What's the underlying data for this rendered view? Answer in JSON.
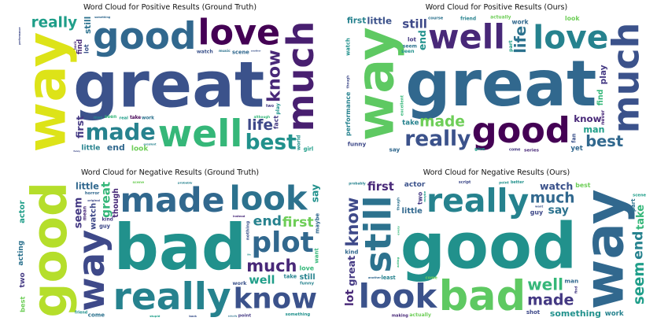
{
  "panels": [
    {
      "title": "Word Cloud for Positive Results (Ground Truth)",
      "words": [
        {
          "text": "great",
          "size": 1.0,
          "color": "#3b528b"
        },
        {
          "text": "good",
          "size": 0.95,
          "color": "#31688e"
        },
        {
          "text": "way",
          "size": 0.85,
          "color": "#dde318"
        },
        {
          "text": "well",
          "size": 0.8,
          "color": "#35b779"
        },
        {
          "text": "love",
          "size": 0.75,
          "color": "#440154"
        },
        {
          "text": "much",
          "size": 0.65,
          "color": "#481f70"
        },
        {
          "text": "made",
          "size": 0.55,
          "color": "#26828e"
        },
        {
          "text": "best",
          "size": 0.5,
          "color": "#21918c"
        },
        {
          "text": "know",
          "size": 0.5,
          "color": "#482878"
        },
        {
          "text": "life",
          "size": 0.48,
          "color": "#3e4989"
        },
        {
          "text": "really",
          "size": 0.48,
          "color": "#1f9e89"
        },
        {
          "text": "first",
          "size": 0.45,
          "color": "#443983"
        },
        {
          "text": "end",
          "size": 0.38,
          "color": "#31688e"
        },
        {
          "text": "look",
          "size": 0.3,
          "color": "#6ece58"
        },
        {
          "text": "still",
          "size": 0.3,
          "color": "#2c728e"
        },
        {
          "text": "little",
          "size": 0.3,
          "color": "#26828e"
        },
        {
          "text": "watch",
          "size": 0.28,
          "color": "#3b528b"
        },
        {
          "text": "play",
          "size": 0.28,
          "color": "#21918c"
        },
        {
          "text": "seen",
          "size": 0.26,
          "color": "#35b779"
        },
        {
          "text": "work",
          "size": 0.26,
          "color": "#2c728e"
        },
        {
          "text": "find",
          "size": 0.24,
          "color": "#482878"
        },
        {
          "text": "real",
          "size": 0.22,
          "color": "#1f9e89"
        },
        {
          "text": "scene",
          "size": 0.2,
          "color": "#31688e"
        },
        {
          "text": "lot",
          "size": 0.2,
          "color": "#3b528b"
        },
        {
          "text": "man",
          "size": 0.2,
          "color": "#26828e"
        },
        {
          "text": "take",
          "size": 0.16,
          "color": "#440154"
        },
        {
          "text": "fact",
          "size": 0.16,
          "color": "#443983"
        },
        {
          "text": "funny",
          "size": 0.14,
          "color": "#3e4989"
        },
        {
          "text": "music",
          "size": 0.14,
          "color": "#2c728e"
        },
        {
          "text": "world",
          "size": 0.14,
          "color": "#21918c"
        },
        {
          "text": "come",
          "size": 0.14,
          "color": "#26828e"
        },
        {
          "text": "something",
          "size": 0.12,
          "color": "#31688e"
        },
        {
          "text": "thought",
          "size": 0.12,
          "color": "#6ece58"
        },
        {
          "text": "another",
          "size": 0.12,
          "color": "#3b528b"
        },
        {
          "text": "girl",
          "size": 0.12,
          "color": "#1f9e89"
        },
        {
          "text": "back",
          "size": 0.12,
          "color": "#482878"
        },
        {
          "text": "although",
          "size": 0.12,
          "color": "#35b779"
        },
        {
          "text": "excellent",
          "size": 0.1,
          "color": "#26828e"
        },
        {
          "text": "performance",
          "size": 0.1,
          "color": "#3e4989"
        },
        {
          "text": "two",
          "size": 0.12,
          "color": "#443983"
        }
      ]
    },
    {
      "title": "Word Cloud for Positive Results (Ours)",
      "words": [
        {
          "text": "great",
          "size": 1.0,
          "color": "#31688e"
        },
        {
          "text": "good",
          "size": 0.9,
          "color": "#440154"
        },
        {
          "text": "way",
          "size": 0.8,
          "color": "#5ec962"
        },
        {
          "text": "well",
          "size": 0.72,
          "color": "#482878"
        },
        {
          "text": "love",
          "size": 0.68,
          "color": "#26828e"
        },
        {
          "text": "much",
          "size": 0.65,
          "color": "#3b528b"
        },
        {
          "text": "really",
          "size": 0.5,
          "color": "#3b528b"
        },
        {
          "text": "best",
          "size": 0.42,
          "color": "#31688e"
        },
        {
          "text": "life",
          "size": 0.42,
          "color": "#2c728e"
        },
        {
          "text": "made",
          "size": 0.4,
          "color": "#6ece58"
        },
        {
          "text": "still",
          "size": 0.38,
          "color": "#3e4989"
        },
        {
          "text": "end",
          "size": 0.36,
          "color": "#21918c"
        },
        {
          "text": "know",
          "size": 0.34,
          "color": "#482878"
        },
        {
          "text": "man",
          "size": 0.32,
          "color": "#1f9e89"
        },
        {
          "text": "play",
          "size": 0.3,
          "color": "#443983"
        },
        {
          "text": "first",
          "size": 0.3,
          "color": "#26828e"
        },
        {
          "text": "little",
          "size": 0.28,
          "color": "#3b528b"
        },
        {
          "text": "find",
          "size": 0.26,
          "color": "#35b779"
        },
        {
          "text": "work",
          "size": 0.24,
          "color": "#31688e"
        },
        {
          "text": "seem",
          "size": 0.22,
          "color": "#2c728e"
        },
        {
          "text": "watch",
          "size": 0.2,
          "color": "#21918c"
        },
        {
          "text": "look",
          "size": 0.2,
          "color": "#6ece58"
        },
        {
          "text": "take",
          "size": 0.18,
          "color": "#26828e"
        },
        {
          "text": "part",
          "size": 0.18,
          "color": "#1f9e89"
        },
        {
          "text": "funny",
          "size": 0.14,
          "color": "#3e4989"
        },
        {
          "text": "series",
          "size": 0.12,
          "color": "#482878"
        },
        {
          "text": "performance",
          "size": 0.12,
          "color": "#26828e"
        },
        {
          "text": "lot",
          "size": 0.14,
          "color": "#443983"
        },
        {
          "text": "yet",
          "size": 0.14,
          "color": "#31688e"
        },
        {
          "text": "fan",
          "size": 0.12,
          "color": "#3b528b"
        },
        {
          "text": "seen",
          "size": 0.14,
          "color": "#21918c"
        },
        {
          "text": "course",
          "size": 0.1,
          "color": "#2c728e"
        },
        {
          "text": "excellent",
          "size": 0.1,
          "color": "#35b779"
        },
        {
          "text": "friend",
          "size": 0.1,
          "color": "#26828e"
        },
        {
          "text": "give",
          "size": 0.12,
          "color": "#1f9e89"
        },
        {
          "text": "never",
          "size": 0.1,
          "color": "#482878"
        },
        {
          "text": "actually",
          "size": 0.1,
          "color": "#6ece58"
        },
        {
          "text": "come",
          "size": 0.12,
          "color": "#443983"
        },
        {
          "text": "though",
          "size": 0.12,
          "color": "#3e4989"
        },
        {
          "text": "say",
          "size": 0.14,
          "color": "#31688e"
        }
      ]
    },
    {
      "title": "Word Cloud for Negative Results (Ground Truth)",
      "words": [
        {
          "text": "bad",
          "size": 1.0,
          "color": "#21918c"
        },
        {
          "text": "really",
          "size": 0.8,
          "color": "#26828e"
        },
        {
          "text": "good",
          "size": 0.75,
          "color": "#b5de2b"
        },
        {
          "text": "made",
          "size": 0.6,
          "color": "#31688e"
        },
        {
          "text": "look",
          "size": 0.58,
          "color": "#2c728e"
        },
        {
          "text": "way",
          "size": 0.55,
          "color": "#3e4989"
        },
        {
          "text": "know",
          "size": 0.4,
          "color": "#3b528b"
        },
        {
          "text": "plot",
          "size": 0.4,
          "color": "#31688e"
        },
        {
          "text": "great",
          "size": 0.38,
          "color": "#35b779"
        },
        {
          "text": "much",
          "size": 0.38,
          "color": "#482878"
        },
        {
          "text": "well",
          "size": 0.36,
          "color": "#1f9e89"
        },
        {
          "text": "seem",
          "size": 0.32,
          "color": "#443983"
        },
        {
          "text": "end",
          "size": 0.3,
          "color": "#26828e"
        },
        {
          "text": "first",
          "size": 0.3,
          "color": "#6ece58"
        },
        {
          "text": "watch",
          "size": 0.28,
          "color": "#3e4989"
        },
        {
          "text": "little",
          "size": 0.26,
          "color": "#31688e"
        },
        {
          "text": "still",
          "size": 0.26,
          "color": "#26828e"
        },
        {
          "text": "say",
          "size": 0.24,
          "color": "#21918c"
        },
        {
          "text": "work",
          "size": 0.24,
          "color": "#3b528b"
        },
        {
          "text": "come",
          "size": 0.22,
          "color": "#2c728e"
        },
        {
          "text": "two",
          "size": 0.2,
          "color": "#443983"
        },
        {
          "text": "something",
          "size": 0.18,
          "color": "#21918c"
        },
        {
          "text": "love",
          "size": 0.16,
          "color": "#35b779"
        },
        {
          "text": "though",
          "size": 0.16,
          "color": "#482878"
        },
        {
          "text": "take",
          "size": 0.16,
          "color": "#26828e"
        },
        {
          "text": "guy",
          "size": 0.16,
          "color": "#3e4989"
        },
        {
          "text": "actor",
          "size": 0.14,
          "color": "#1f9e89"
        },
        {
          "text": "horror",
          "size": 0.14,
          "color": "#31688e"
        },
        {
          "text": "scene",
          "size": 0.14,
          "color": "#6ece58"
        },
        {
          "text": "nothing",
          "size": 0.12,
          "color": "#3b528b"
        },
        {
          "text": "funny",
          "size": 0.12,
          "color": "#26828e"
        },
        {
          "text": "point",
          "size": 0.12,
          "color": "#443983"
        },
        {
          "text": "acting",
          "size": 0.12,
          "color": "#2c728e"
        },
        {
          "text": "friend",
          "size": 0.12,
          "color": "#21918c"
        },
        {
          "text": "instead",
          "size": 0.1,
          "color": "#482878"
        },
        {
          "text": "want",
          "size": 0.1,
          "color": "#35b779"
        },
        {
          "text": "original",
          "size": 0.1,
          "color": "#3e4989"
        },
        {
          "text": "probably",
          "size": 0.1,
          "color": "#26828e"
        },
        {
          "text": "maybe",
          "size": 0.1,
          "color": "#31688e"
        },
        {
          "text": "stupid",
          "size": 0.1,
          "color": "#1f9e89"
        },
        {
          "text": "kind",
          "size": 0.1,
          "color": "#443983"
        },
        {
          "text": "best",
          "size": 0.1,
          "color": "#6ece58"
        },
        {
          "text": "back",
          "size": 0.1,
          "color": "#3b528b"
        },
        {
          "text": "actually",
          "size": 0.1,
          "color": "#2c728e"
        },
        {
          "text": "mean",
          "size": 0.1,
          "color": "#482878"
        },
        {
          "text": "life",
          "size": 0.1,
          "color": "#21918c"
        }
      ]
    },
    {
      "title": "Word Cloud for Negative Results (Ours)",
      "words": [
        {
          "text": "good",
          "size": 1.0,
          "color": "#21918c"
        },
        {
          "text": "bad",
          "size": 0.9,
          "color": "#5ec962"
        },
        {
          "text": "way",
          "size": 0.85,
          "color": "#31688e"
        },
        {
          "text": "really",
          "size": 0.82,
          "color": "#26828e"
        },
        {
          "text": "look",
          "size": 0.7,
          "color": "#3b528b"
        },
        {
          "text": "still",
          "size": 0.55,
          "color": "#2c728e"
        },
        {
          "text": "made",
          "size": 0.5,
          "color": "#443983"
        },
        {
          "text": "much",
          "size": 0.4,
          "color": "#31688e"
        },
        {
          "text": "know",
          "size": 0.38,
          "color": "#3e4989"
        },
        {
          "text": "well",
          "size": 0.36,
          "color": "#35b779"
        },
        {
          "text": "first",
          "size": 0.3,
          "color": "#482878"
        },
        {
          "text": "end",
          "size": 0.3,
          "color": "#26828e"
        },
        {
          "text": "watch",
          "size": 0.3,
          "color": "#3b528b"
        },
        {
          "text": "say",
          "size": 0.28,
          "color": "#2c728e"
        },
        {
          "text": "seem",
          "size": 0.26,
          "color": "#1f9e89"
        },
        {
          "text": "little",
          "size": 0.22,
          "color": "#31688e"
        },
        {
          "text": "something",
          "size": 0.2,
          "color": "#21918c"
        },
        {
          "text": "great",
          "size": 0.2,
          "color": "#443983"
        },
        {
          "text": "actually",
          "size": 0.18,
          "color": "#6ece58"
        },
        {
          "text": "work",
          "size": 0.18,
          "color": "#26828e"
        },
        {
          "text": "take",
          "size": 0.16,
          "color": "#35b779"
        },
        {
          "text": "guy",
          "size": 0.16,
          "color": "#3e4989"
        },
        {
          "text": "scene",
          "size": 0.14,
          "color": "#1f9e89"
        },
        {
          "text": "lot",
          "size": 0.14,
          "color": "#482878"
        },
        {
          "text": "man",
          "size": 0.14,
          "color": "#31688e"
        },
        {
          "text": "actor",
          "size": 0.12,
          "color": "#3b528b"
        },
        {
          "text": "though",
          "size": 0.12,
          "color": "#2c728e"
        },
        {
          "text": "least",
          "size": 0.12,
          "color": "#26828e"
        },
        {
          "text": "better",
          "size": 0.12,
          "color": "#21918c"
        },
        {
          "text": "two",
          "size": 0.12,
          "color": "#443983"
        },
        {
          "text": "best",
          "size": 0.12,
          "color": "#6ece58"
        },
        {
          "text": "script",
          "size": 0.12,
          "color": "#3e4989"
        },
        {
          "text": "acting",
          "size": 0.1,
          "color": "#35b779"
        },
        {
          "text": "another",
          "size": 0.1,
          "color": "#31688e"
        },
        {
          "text": "making",
          "size": 0.1,
          "color": "#482878"
        },
        {
          "text": "maybe",
          "size": 0.1,
          "color": "#1f9e89"
        },
        {
          "text": "probably",
          "size": 0.1,
          "color": "#26828e"
        },
        {
          "text": "want",
          "size": 0.1,
          "color": "#3b528b"
        },
        {
          "text": "part",
          "size": 0.1,
          "color": "#2c728e"
        },
        {
          "text": "point",
          "size": 0.1,
          "color": "#21918c"
        },
        {
          "text": "come",
          "size": 0.1,
          "color": "#6ece58"
        },
        {
          "text": "find",
          "size": 0.1,
          "color": "#443983"
        },
        {
          "text": "shot",
          "size": 0.1,
          "color": "#3e4989"
        },
        {
          "text": "kind",
          "size": 0.1,
          "color": "#31688e"
        },
        {
          "text": "every",
          "size": 0.1,
          "color": "#35b779"
        }
      ]
    }
  ]
}
